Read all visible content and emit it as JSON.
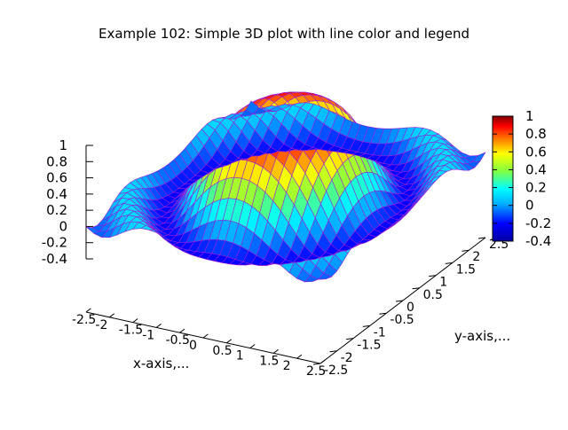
{
  "chart_data": {
    "type": "surface3d",
    "title": "Example 102: Simple 3D plot with line color and legend",
    "xlabel": "x-axis,...",
    "ylabel": "y-axis,...",
    "zlabel": "",
    "xlim": [
      -2.5,
      2.5
    ],
    "ylim": [
      -2.5,
      2.5
    ],
    "zlim": [
      -0.4,
      1
    ],
    "x_ticks": [
      "-2.5",
      "-2",
      "-1.5",
      "-1",
      "-0.5",
      "0",
      "0.5",
      "1",
      "1.5",
      "2",
      "2.5"
    ],
    "y_ticks": [
      "-2.5",
      "-2",
      "-1.5",
      "-1",
      "-0.5",
      "0",
      "0.5",
      "1",
      "1.5",
      "2",
      "2.5"
    ],
    "z_ticks": [
      "1",
      "0.8",
      "0.6",
      "0.4",
      "0.2",
      "0",
      "-0.2",
      "-0.4"
    ],
    "colorbar": {
      "range": [
        -0.4,
        1
      ],
      "ticks": [
        "1",
        "0.8",
        "0.6",
        "0.4",
        "0.2",
        "0",
        "-0.2",
        "-0.4"
      ]
    },
    "surface": {
      "function": "sin(r^2)/r^2, r^2 = x^2 + y^2",
      "grid_points": 31,
      "colormap": "jet",
      "mesh_line_color": "#9a1fd6"
    },
    "grid": false
  }
}
